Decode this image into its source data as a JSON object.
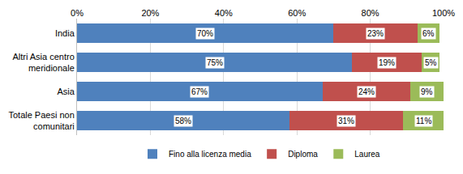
{
  "chart_data": {
    "type": "bar",
    "orientation": "horizontal",
    "stacked": true,
    "data_labels": true,
    "grid": true,
    "legend": "bottom",
    "categories": [
      "India",
      "Altri Asia centro meridionale",
      "Asia",
      "Totale Paesi non comunitari"
    ],
    "series": [
      {
        "name": "Fino alla licenza media",
        "color": "#4f81bd",
        "values": [
          70,
          75,
          67,
          58
        ],
        "value_labels": [
          "70%",
          "75%",
          "67%",
          "58%"
        ]
      },
      {
        "name": "Diploma",
        "color": "#c0504d",
        "values": [
          23,
          19,
          24,
          31
        ],
        "value_labels": [
          "23%",
          "19%",
          "24%",
          "31%"
        ]
      },
      {
        "name": "Laurea",
        "color": "#9bbb59",
        "values": [
          6,
          5,
          9,
          11
        ],
        "value_labels": [
          "6%",
          "5%",
          "9%",
          "11%"
        ]
      }
    ],
    "xlim": [
      0,
      100
    ],
    "xticks": [
      {
        "value": 0,
        "label": "0%"
      },
      {
        "value": 20,
        "label": "20%"
      },
      {
        "value": 40,
        "label": "40%"
      },
      {
        "value": 60,
        "label": "60%"
      },
      {
        "value": 80,
        "label": "80%"
      },
      {
        "value": 100,
        "label": "100%"
      }
    ]
  }
}
